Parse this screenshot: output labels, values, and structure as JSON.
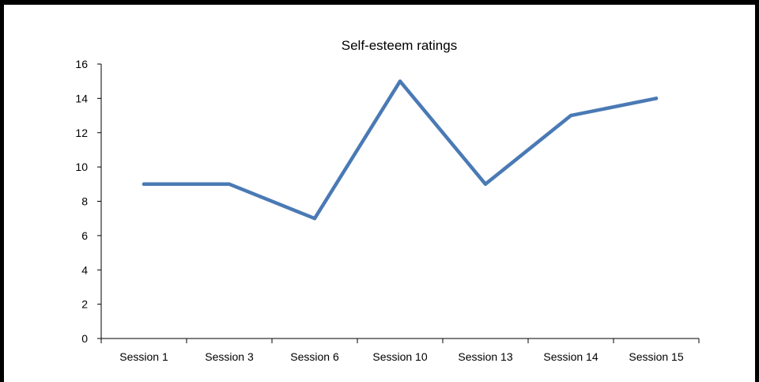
{
  "chart_data": {
    "type": "line",
    "title": "Self-esteem ratings",
    "xlabel": "",
    "ylabel": "",
    "categories": [
      "Session 1",
      "Session 3",
      "Session 6",
      "Session 10",
      "Session 13",
      "Session 14",
      "Session 15"
    ],
    "series": [
      {
        "values": [
          9,
          9,
          7,
          15,
          9,
          13,
          14
        ],
        "color": "#4a7ab5"
      }
    ],
    "ylim": [
      0,
      16
    ],
    "yticks": [
      0,
      2,
      4,
      6,
      8,
      10,
      12,
      14,
      16
    ],
    "grid": false,
    "legend": "none"
  }
}
